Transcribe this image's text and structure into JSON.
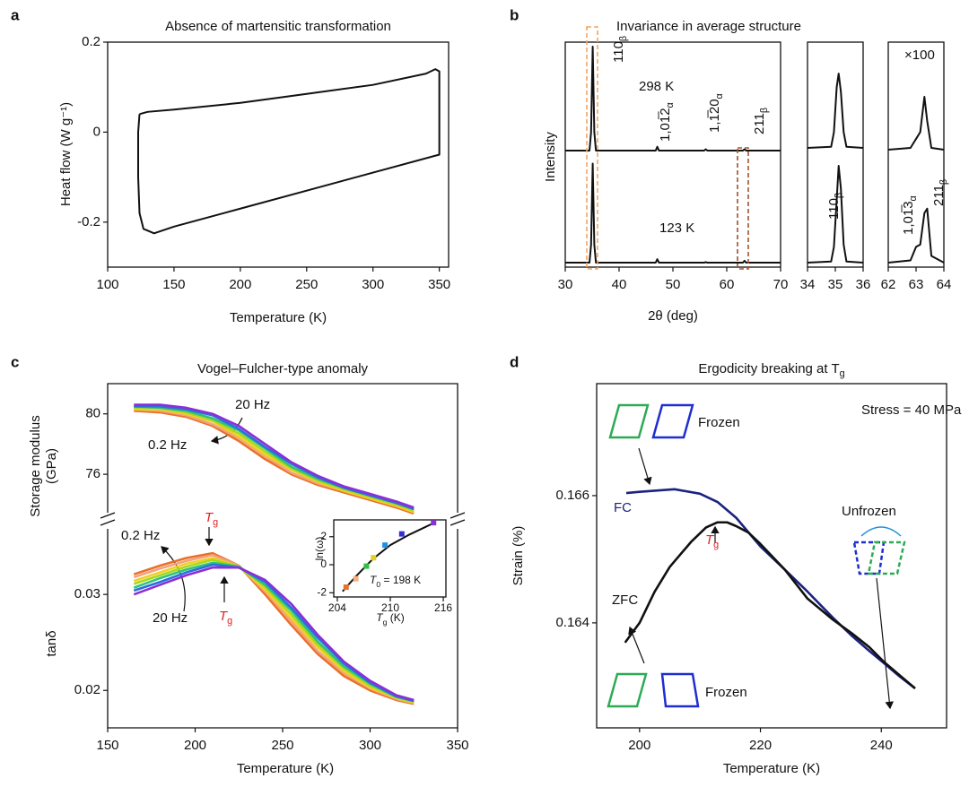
{
  "chart_data": [
    {
      "type": "line",
      "label": "a",
      "title": "Absence of martensitic transformation",
      "xlabel": "Temperature (K)",
      "ylabel": "Heat flow (W g⁻¹)",
      "xlim": [
        100,
        357
      ],
      "ylim": [
        -0.3,
        0.2
      ],
      "xticks": [
        100,
        150,
        200,
        250,
        300,
        350
      ],
      "yticks": [
        -0.2,
        0,
        0.2
      ],
      "x": [
        124,
        130,
        150,
        200,
        250,
        300,
        340,
        347,
        350,
        350,
        350,
        300,
        250,
        200,
        150,
        135,
        127,
        124,
        123,
        123,
        124
      ],
      "series": [
        {
          "color": "#111111",
          "values": [
            0.04,
            0.045,
            0.05,
            0.065,
            0.085,
            0.105,
            0.13,
            0.14,
            0.135,
            0.05,
            -0.05,
            -0.09,
            -0.13,
            -0.17,
            -0.21,
            -0.225,
            -0.215,
            -0.18,
            -0.1,
            0,
            0.04
          ]
        }
      ]
    },
    {
      "type": "line",
      "label": "b",
      "title": "Invariance in average structure",
      "xlabel": "2θ (deg)",
      "ylabel": "Intensity",
      "xlim": [
        30,
        70
      ],
      "ylim": [
        0,
        1
      ],
      "xticks": [
        30,
        40,
        50,
        60,
        70
      ],
      "x": [
        30,
        34.5,
        34.8,
        35.1,
        35.4,
        35.7,
        40,
        46.8,
        47.1,
        47.4,
        55.8,
        56.1,
        56.4,
        63.0,
        63.3,
        63.6,
        70
      ],
      "series": [
        {
          "name": "298 K",
          "color": "#111111",
          "values": [
            0.518,
            0.518,
            0.6,
            0.98,
            0.6,
            0.518,
            0.518,
            0.518,
            0.535,
            0.518,
            0.518,
            0.524,
            0.518,
            0.518,
            0.524,
            0.518,
            0.518
          ]
        },
        {
          "name": "123 K",
          "color": "#111111",
          "values": [
            0.02,
            0.02,
            0.1,
            0.46,
            0.1,
            0.02,
            0.02,
            0.02,
            0.035,
            0.02,
            0.02,
            0.022,
            0.02,
            0.02,
            0.028,
            0.02,
            0.02
          ]
        }
      ],
      "annotations": [
        {
          "text": "110",
          "sub": "β"
        },
        {
          "text": "1,01̅2",
          "sub": "α"
        },
        {
          "text": "1,1̅20",
          "sub": "α"
        },
        {
          "text": "211",
          "sub": "β"
        }
      ]
    },
    {
      "type": "line",
      "xlim": [
        34,
        36
      ],
      "ylim": [
        0,
        1
      ],
      "xticks": [
        34,
        35,
        36
      ],
      "frame_color": "#f4a460",
      "x": [
        34,
        34.85,
        34.95,
        35.05,
        35.12,
        35.2,
        35.3,
        35.4,
        36
      ],
      "series": [
        {
          "color": "#111111",
          "values": [
            0.53,
            0.535,
            0.6,
            0.8,
            0.86,
            0.78,
            0.6,
            0.535,
            0.53
          ]
        },
        {
          "color": "#111111",
          "values": [
            0.02,
            0.025,
            0.09,
            0.3,
            0.45,
            0.35,
            0.1,
            0.025,
            0.02
          ]
        }
      ],
      "annotations": [
        {
          "text": "110",
          "sub": "β"
        }
      ]
    },
    {
      "type": "line",
      "xlim": [
        62,
        64
      ],
      "ylim": [
        0,
        1
      ],
      "xticks": [
        62,
        63,
        64
      ],
      "frame_color": "#a0522d",
      "x": [
        62,
        62.8,
        63.0,
        63.15,
        63.3,
        63.4,
        63.55,
        64
      ],
      "series": [
        {
          "color": "#111111",
          "values": [
            0.522,
            0.53,
            0.57,
            0.6,
            0.757,
            0.65,
            0.53,
            0.522
          ]
        },
        {
          "color": "#111111",
          "values": [
            0.02,
            0.03,
            0.09,
            0.1,
            0.24,
            0.26,
            0.05,
            0.02
          ]
        }
      ],
      "annotations": [
        "×100",
        {
          "text": "1,01̅3",
          "sub": "α"
        },
        {
          "text": "211",
          "sub": "β"
        }
      ]
    },
    {
      "type": "line",
      "label": "c",
      "title": "Vogel–Fulcher-type anomaly",
      "ylabel": [
        "Storage modulus",
        "(GPa)"
      ],
      "xlim": [
        150,
        350
      ],
      "ylim": [
        73.1,
        82
      ],
      "yticks": [
        76,
        80
      ],
      "x": [
        165,
        180,
        195,
        210,
        225,
        240,
        255,
        270,
        285,
        300,
        315,
        325
      ],
      "series": [
        {
          "color": "#e8702a",
          "values": [
            80.2,
            80.1,
            79.8,
            79.2,
            78.2,
            77.0,
            76.0,
            75.3,
            74.8,
            74.3,
            73.8,
            73.4
          ]
        },
        {
          "color": "#f2a27a",
          "values": [
            80.3,
            80.2,
            79.9,
            79.3,
            78.4,
            77.2,
            76.1,
            75.4,
            74.9,
            74.4,
            73.9,
            73.5
          ]
        },
        {
          "color": "#f0cf2a",
          "values": [
            80.3,
            80.3,
            80.0,
            79.5,
            78.5,
            77.3,
            76.3,
            75.5,
            74.9,
            74.4,
            73.9,
            73.5
          ]
        },
        {
          "color": "#a8d81a",
          "values": [
            80.4,
            80.4,
            80.1,
            79.6,
            78.7,
            77.5,
            76.4,
            75.6,
            75.0,
            74.5,
            74.0,
            73.6
          ]
        },
        {
          "color": "#2ec27e",
          "values": [
            80.5,
            80.4,
            80.2,
            79.7,
            78.9,
            77.7,
            76.5,
            75.7,
            75.1,
            74.6,
            74.1,
            73.7
          ]
        },
        {
          "color": "#2a6fdb",
          "values": [
            80.5,
            80.5,
            80.3,
            79.9,
            79.0,
            77.8,
            76.7,
            75.8,
            75.1,
            74.6,
            74.1,
            73.7
          ]
        },
        {
          "color": "#8b2fd6",
          "values": [
            80.6,
            80.6,
            80.4,
            80.0,
            79.2,
            78.0,
            76.8,
            75.9,
            75.2,
            74.7,
            74.2,
            73.8
          ]
        }
      ],
      "annotations": [
        "20 Hz",
        "0.2 Hz"
      ]
    },
    {
      "type": "line",
      "xlabel": "Temperature (K)",
      "ylabel": "tanδ",
      "xlim": [
        150,
        350
      ],
      "ylim": [
        0.0161,
        0.0373
      ],
      "xticks": [
        150,
        200,
        250,
        300,
        350
      ],
      "yticks": [
        0.02,
        0.03
      ],
      "x": [
        165,
        180,
        195,
        210,
        225,
        240,
        255,
        270,
        285,
        300,
        315,
        325
      ],
      "series": [
        {
          "color": "#e8702a",
          "values": [
            0.0321,
            0.033,
            0.0338,
            0.0343,
            0.033,
            0.03,
            0.0268,
            0.0238,
            0.0215,
            0.02,
            0.019,
            0.0186
          ]
        },
        {
          "color": "#f2a27a",
          "values": [
            0.0318,
            0.0327,
            0.0335,
            0.0341,
            0.033,
            0.0303,
            0.0272,
            0.0241,
            0.0218,
            0.0202,
            0.0191,
            0.0187
          ]
        },
        {
          "color": "#f0cf2a",
          "values": [
            0.0314,
            0.0323,
            0.0332,
            0.0338,
            0.0329,
            0.0305,
            0.0275,
            0.0245,
            0.022,
            0.0203,
            0.0192,
            0.0187
          ]
        },
        {
          "color": "#a8d81a",
          "values": [
            0.0311,
            0.032,
            0.0329,
            0.0336,
            0.0329,
            0.0308,
            0.0279,
            0.0248,
            0.0223,
            0.0205,
            0.0193,
            0.0188
          ]
        },
        {
          "color": "#2ec27e",
          "values": [
            0.0307,
            0.0317,
            0.0326,
            0.0333,
            0.0329,
            0.031,
            0.0283,
            0.0251,
            0.0225,
            0.0207,
            0.0193,
            0.0189
          ]
        },
        {
          "color": "#2a6fdb",
          "values": [
            0.0304,
            0.0313,
            0.0323,
            0.0331,
            0.0328,
            0.0313,
            0.0286,
            0.0255,
            0.0228,
            0.0208,
            0.0194,
            0.0189
          ]
        },
        {
          "color": "#8b2fd6",
          "values": [
            0.03,
            0.031,
            0.032,
            0.0328,
            0.0328,
            0.0315,
            0.029,
            0.0258,
            0.023,
            0.021,
            0.0195,
            0.019
          ]
        }
      ],
      "annotations": [
        "0.2 Hz",
        "20 Hz",
        {
          "text": "T",
          "sub": "g"
        },
        {
          "text": "T",
          "sub": "g"
        }
      ]
    },
    {
      "type": "scatter",
      "xlabel": {
        "text": "T",
        "sub": "g",
        "tail": " (K)"
      },
      "ylabel": "ln(ω)",
      "xlim": [
        203.6,
        216.3
      ],
      "ylim": [
        -2.3,
        3.2
      ],
      "xticks": [
        204,
        210,
        216
      ],
      "yticks": [
        -2,
        0,
        2
      ],
      "x": [
        205.0,
        206.1,
        207.3,
        208.1,
        209.4,
        211.3,
        214.9
      ],
      "values": [
        -1.6,
        -1.0,
        -0.1,
        0.5,
        1.4,
        2.2,
        3.0
      ],
      "colors": [
        "#e8702a",
        "#f5b080",
        "#30c040",
        "#e0d020",
        "#2090e0",
        "#3030d0",
        "#8b2fd6"
      ],
      "fit": {
        "color": "#111111",
        "x": [
          204.6,
          206,
          208,
          210,
          212,
          214,
          215
        ],
        "values": [
          -1.9,
          -0.9,
          0.4,
          1.4,
          2.1,
          2.7,
          3.0
        ]
      },
      "annotations": [
        {
          "text": "T",
          "sub": "0",
          "tail": " = 198 K"
        }
      ]
    },
    {
      "type": "line",
      "label": "d",
      "title": {
        "text": "Ergodicity breaking at T",
        "sub": "g"
      },
      "xlabel": "Temperature (K)",
      "ylabel": "Strain (%)",
      "xlim": [
        192.9,
        250.8
      ],
      "ylim": [
        0.16235,
        0.16776
      ],
      "xticks": [
        200,
        220,
        240
      ],
      "yticks": [
        0.164,
        0.166
      ],
      "series": [
        {
          "name": "FC",
          "color": "#1a237e",
          "x": [
            197.8,
            200,
            205.8,
            210,
            212.9,
            216,
            220,
            224,
            227.8,
            232,
            235.2,
            238,
            240.4,
            243,
            245.6
          ],
          "values": [
            0.16604,
            0.16606,
            0.1661,
            0.16603,
            0.1659,
            0.16565,
            0.1652,
            0.16484,
            0.16449,
            0.16408,
            0.16379,
            0.16356,
            0.16337,
            0.16316,
            0.16297
          ]
        },
        {
          "name": "ZFC",
          "color": "#111111",
          "x": [
            197.6,
            200,
            202.5,
            205,
            208.5,
            211,
            212.9,
            214.5,
            216,
            218,
            220,
            224,
            227.8,
            232,
            235.2,
            238,
            240.4,
            243,
            245.6
          ],
          "values": [
            0.16369,
            0.164,
            0.16449,
            0.16488,
            0.16527,
            0.1655,
            0.16558,
            0.16558,
            0.16552,
            0.16542,
            0.16524,
            0.16484,
            0.16438,
            0.16405,
            0.16383,
            0.16362,
            0.16339,
            0.16318,
            0.16297
          ]
        }
      ],
      "annotations": [
        "Stress = 40 MPa",
        {
          "text": "T",
          "sub": "g"
        },
        "Frozen",
        "Frozen",
        "Unfrozen"
      ]
    }
  ]
}
